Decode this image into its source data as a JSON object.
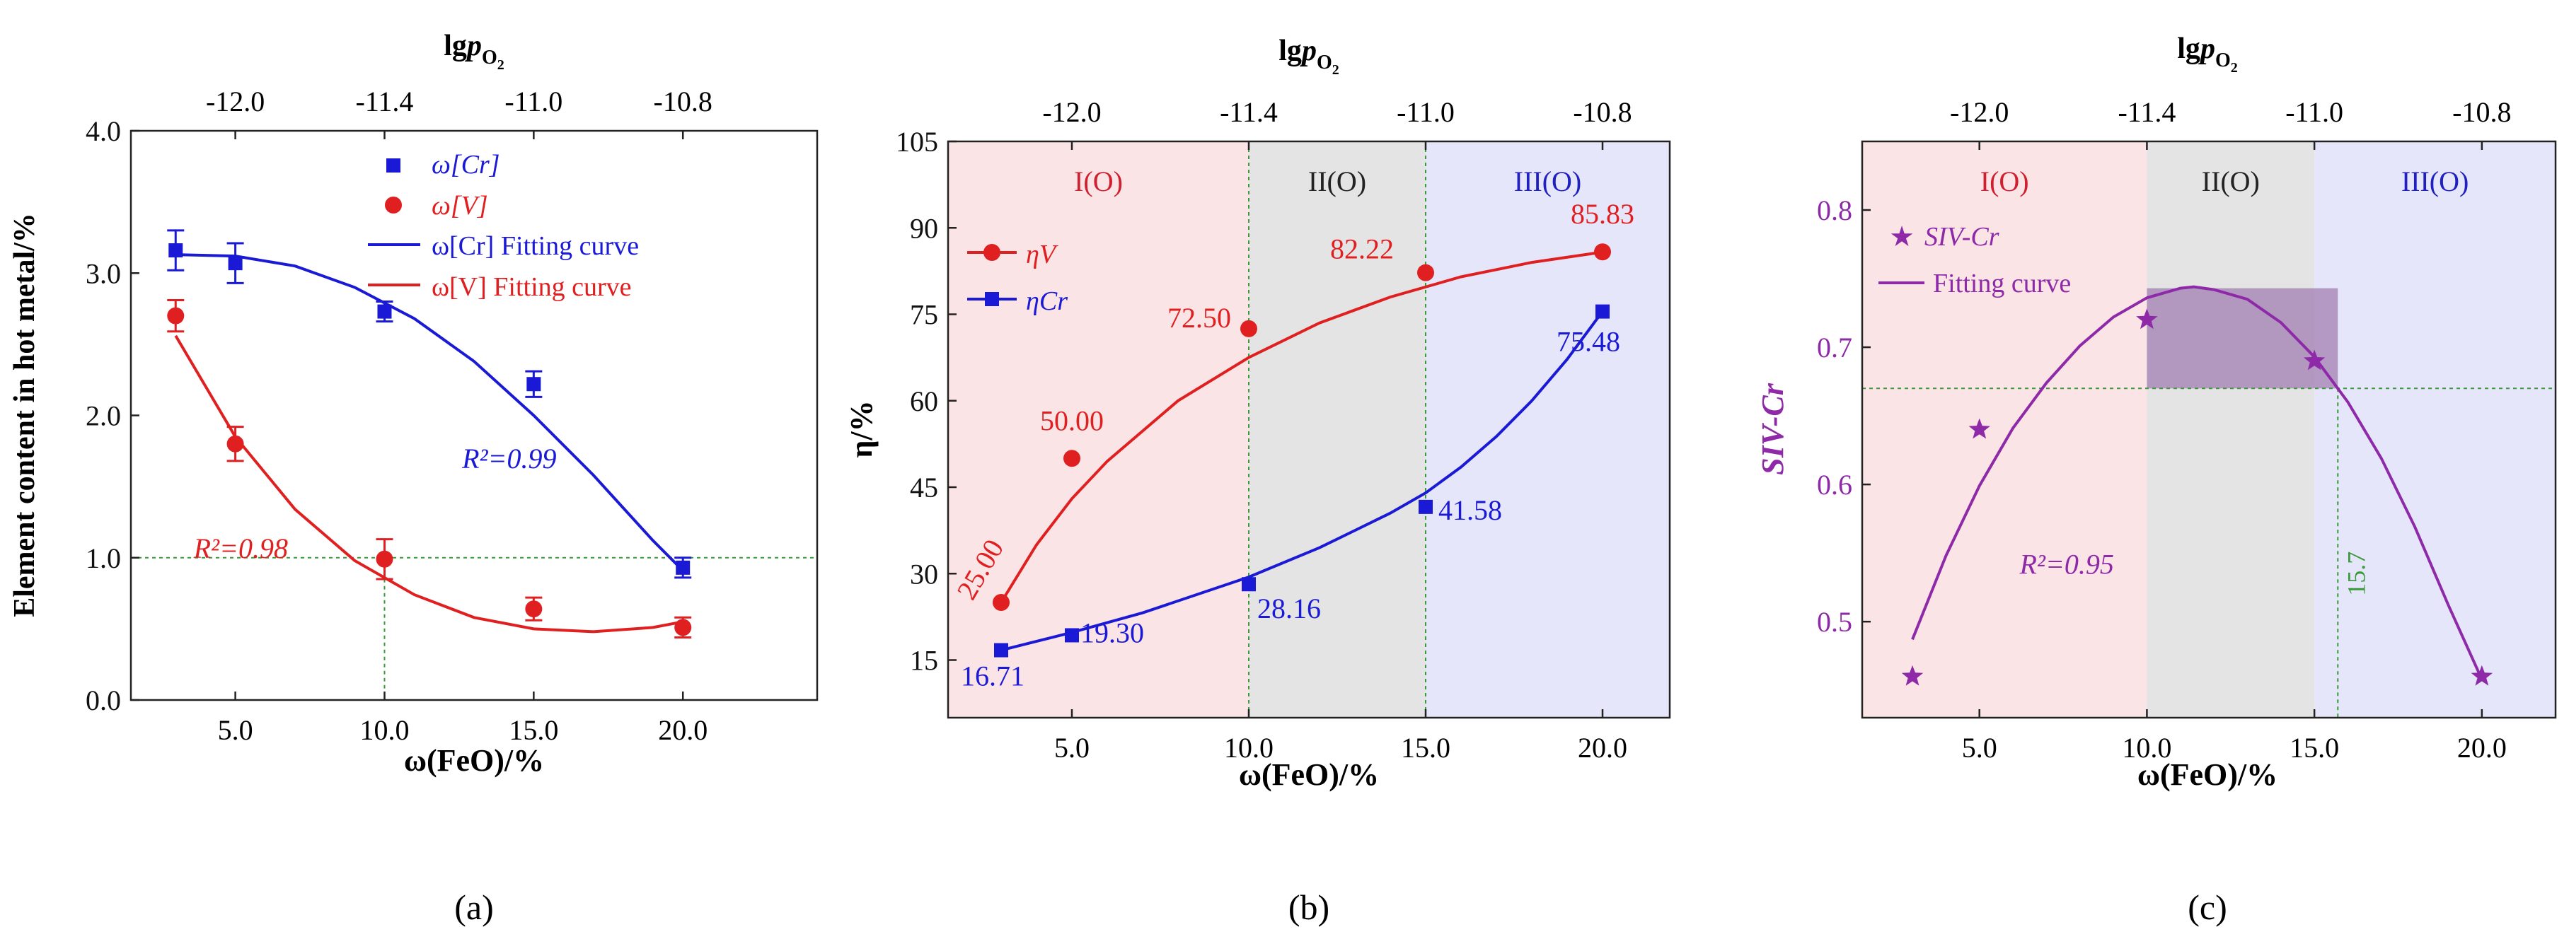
{
  "figure_labels": [
    "(a)",
    "(b)",
    "(c)"
  ],
  "colors": {
    "cr": "#1a1ad6",
    "v": "#e02020",
    "si": "#8e2aa8",
    "ref": "#3a9a3a",
    "zone1": "#fbe4e6",
    "zone2": "#e4e4e4",
    "zone3": "#e6e6fb",
    "band": "#a98bb8"
  },
  "chart_data": [
    {
      "id": "a",
      "type": "scatter",
      "xlabel": "ω(FeO)/%",
      "ylabel": "Element content in hot metal/%",
      "top_axis_label": "lgpO2",
      "top_ticks": [
        "-12.0",
        "-11.4",
        "-11.0",
        "-10.8"
      ],
      "top_tick_positions": [
        5,
        10,
        15,
        20
      ],
      "xlim": [
        1.5,
        24.5
      ],
      "ylim": [
        0,
        4
      ],
      "xticks": [
        5,
        10,
        15,
        20
      ],
      "xtick_labels": [
        "5.0",
        "10.0",
        "15.0",
        "20.0"
      ],
      "yticks": [
        0,
        1,
        2,
        3,
        4
      ],
      "ytick_labels": [
        "0.0",
        "1.0",
        "2.0",
        "3.0",
        "4.0"
      ],
      "reference_lines": {
        "y": 1.0,
        "x": 10
      },
      "legend": [
        "ω[Cr]",
        "ω[V]",
        "ω[Cr] Fitting curve",
        "ω[V] Fitting curve"
      ],
      "series": [
        {
          "name": "ω[Cr]",
          "x": [
            3,
            5,
            10,
            15,
            20
          ],
          "y": [
            3.16,
            3.07,
            2.73,
            2.22,
            0.93
          ],
          "error": [
            0.14,
            0.14,
            0.07,
            0.09,
            0.07
          ]
        },
        {
          "name": "ω[V]",
          "x": [
            3,
            5,
            10,
            15,
            20
          ],
          "y": [
            2.7,
            1.8,
            0.99,
            0.64,
            0.51
          ],
          "error": [
            0.11,
            0.12,
            0.14,
            0.08,
            0.07
          ]
        }
      ],
      "fits": [
        {
          "name": "ω[Cr] Fitting curve",
          "x": [
            3,
            5,
            7,
            9,
            11,
            13,
            15,
            17,
            19,
            20
          ],
          "y": [
            3.13,
            3.12,
            3.05,
            2.9,
            2.68,
            2.38,
            2.0,
            1.58,
            1.12,
            0.91
          ]
        },
        {
          "name": "ω[V] Fitting curve",
          "x": [
            3,
            5,
            7,
            9,
            11,
            13,
            15,
            17,
            19,
            20
          ],
          "y": [
            2.56,
            1.85,
            1.34,
            0.98,
            0.74,
            0.58,
            0.5,
            0.48,
            0.51,
            0.55
          ]
        }
      ],
      "annotations": [
        {
          "text": "R²=0.99",
          "x": 12.6,
          "y": 1.63,
          "series": "ω[Cr]"
        },
        {
          "text": "R²=0.98",
          "x": 3.6,
          "y": 1.0,
          "series": "ω[V]"
        }
      ]
    },
    {
      "id": "b",
      "type": "line",
      "xlabel": "ω(FeO)/%",
      "ylabel": "η/%",
      "top_axis_label": "lgpO2",
      "top_ticks": [
        "-12.0",
        "-11.4",
        "-11.0",
        "-10.8"
      ],
      "top_tick_positions": [
        5,
        10,
        15,
        20
      ],
      "xlim": [
        1.5,
        21.9
      ],
      "ylim": [
        5,
        105
      ],
      "xticks": [
        5,
        10,
        15,
        20
      ],
      "xtick_labels": [
        "5.0",
        "10.0",
        "15.0",
        "20.0"
      ],
      "yticks": [
        15,
        30,
        45,
        60,
        75,
        90,
        105
      ],
      "zones": [
        {
          "label": "I(O)",
          "from": 1.5,
          "to": 10
        },
        {
          "label": "II(O)",
          "from": 10,
          "to": 15
        },
        {
          "label": "III(O)",
          "from": 15,
          "to": 21.9
        }
      ],
      "legend": [
        "ηV",
        "ηCr"
      ],
      "series": [
        {
          "name": "ηV",
          "x": [
            3,
            5,
            10,
            15,
            20
          ],
          "y": [
            25.0,
            50.0,
            72.5,
            82.22,
            85.83
          ],
          "labels": [
            "25.00",
            "50.00",
            "72.50",
            "82.22",
            "85.83"
          ]
        },
        {
          "name": "ηCr",
          "x": [
            3,
            5,
            10,
            15,
            20
          ],
          "y": [
            16.71,
            19.3,
            28.16,
            41.58,
            75.48
          ],
          "labels": [
            "16.71",
            "19.30",
            "28.16",
            "41.58",
            "75.48"
          ]
        }
      ],
      "fits": [
        {
          "name": "ηV",
          "x": [
            3,
            4,
            5,
            6,
            8,
            10,
            12,
            14,
            16,
            18,
            20
          ],
          "y": [
            25.0,
            35.0,
            43.0,
            49.5,
            60.0,
            67.5,
            73.5,
            78.0,
            81.5,
            84.0,
            85.8
          ]
        },
        {
          "name": "ηCr",
          "x": [
            3,
            5,
            7,
            10,
            12,
            14,
            15,
            16,
            17,
            18,
            19,
            20
          ],
          "y": [
            16.7,
            19.8,
            23.2,
            29.4,
            34.5,
            40.5,
            44.0,
            48.5,
            53.8,
            60.0,
            67.2,
            75.5
          ]
        }
      ]
    },
    {
      "id": "c",
      "type": "scatter",
      "xlabel": "ω(FeO)/%",
      "ylabel": "SIV-Cr",
      "top_axis_label": "lgpO2",
      "top_ticks": [
        "-12.0",
        "-11.4",
        "-11.0",
        "-10.8"
      ],
      "top_tick_positions": [
        5,
        10,
        15,
        20
      ],
      "xlim": [
        1.5,
        22.2
      ],
      "ylim": [
        0.43,
        0.85
      ],
      "xticks": [
        5,
        10,
        15,
        20
      ],
      "xtick_labels": [
        "5.0",
        "10.0",
        "15.0",
        "20.0"
      ],
      "yticks": [
        0.5,
        0.6,
        0.7,
        0.8
      ],
      "ytick_labels": [
        "0.5",
        "0.6",
        "0.7",
        "0.8"
      ],
      "zones": [
        {
          "label": "I(O)",
          "from": 1.5,
          "to": 10
        },
        {
          "label": "II(O)",
          "from": 10,
          "to": 15
        },
        {
          "label": "III(O)",
          "from": 15,
          "to": 22.2
        }
      ],
      "highlight_band": {
        "x": [
          10,
          15.7
        ],
        "y": [
          0.67,
          0.743
        ]
      },
      "reference_lines": {
        "y": 0.67,
        "x": 15.7
      },
      "reference_label": "15.7",
      "legend": [
        "SIV-Cr",
        "Fitting curve"
      ],
      "series": [
        {
          "name": "SIV-Cr",
          "x": [
            3,
            5,
            10,
            15,
            20
          ],
          "y": [
            0.46,
            0.64,
            0.72,
            0.69,
            0.46
          ]
        }
      ],
      "fits": [
        {
          "name": "Fitting curve",
          "x": [
            3,
            4,
            5,
            6,
            7,
            8,
            9,
            10,
            11,
            11.4,
            12,
            13,
            14,
            15,
            16,
            17,
            18,
            19,
            20
          ],
          "y": [
            0.487,
            0.548,
            0.599,
            0.641,
            0.674,
            0.701,
            0.722,
            0.736,
            0.743,
            0.744,
            0.742,
            0.735,
            0.718,
            0.693,
            0.66,
            0.619,
            0.569,
            0.512,
            0.458
          ]
        }
      ],
      "annotations": [
        {
          "text": "R²=0.95",
          "x": 6.2,
          "y": 0.535
        }
      ]
    }
  ]
}
